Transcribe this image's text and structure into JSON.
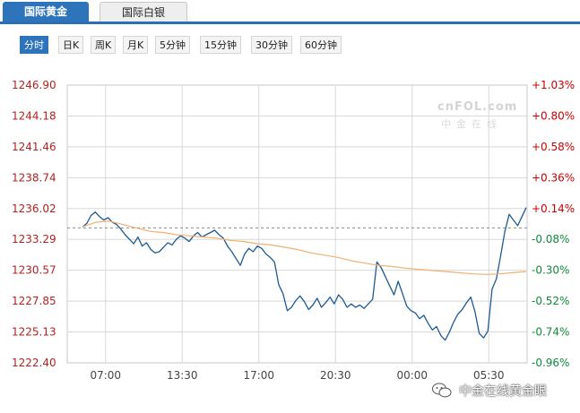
{
  "tabs": [
    {
      "label": "国际黄金",
      "active": true
    },
    {
      "label": "国际白银",
      "active": false
    }
  ],
  "periods": [
    {
      "label": "分时",
      "active": true
    },
    {
      "label": "日K",
      "active": false
    },
    {
      "label": "周K",
      "active": false
    },
    {
      "label": "月K",
      "active": false
    },
    {
      "label": "5分钟",
      "active": false
    },
    {
      "label": "15分钟",
      "active": false
    },
    {
      "label": "30分钟",
      "active": false
    },
    {
      "label": "60分钟",
      "active": false
    }
  ],
  "watermark": {
    "brand": "cnFOL.com",
    "sub": "中金在线"
  },
  "footer_watermark": "中金在线黄金眼",
  "colors": {
    "price_line": "#1f5a94",
    "avg_line": "#f0b070",
    "grid": "#d8d8d8",
    "ref_line": "#8a8a8a",
    "tab_active": "#2d74bb",
    "up": "#cc0000",
    "down": "#11883a"
  },
  "chart_data": {
    "type": "line",
    "y_ticks": [
      "1246.90",
      "1244.18",
      "1241.46",
      "1238.74",
      "1236.02",
      "1233.29",
      "1230.57",
      "1227.85",
      "1225.13",
      "1222.40"
    ],
    "pct_ticks": [
      "+1.03%",
      "+0.80%",
      "+0.58%",
      "+0.36%",
      "+0.14%",
      "-0.08%",
      "-0.30%",
      "-0.52%",
      "-0.74%",
      "-0.96%"
    ],
    "x_ticks": [
      "07:00",
      "13:30",
      "17:00",
      "20:30",
      "00:00",
      "05:30"
    ],
    "ylim": [
      1222.4,
      1246.9
    ],
    "prev_close": 1234.3,
    "grid": true,
    "series": [
      {
        "kind": "price",
        "values": [
          1234.4,
          1234.7,
          1235.4,
          1235.7,
          1235.3,
          1235.0,
          1235.2,
          1234.8,
          1234.6,
          1234.2,
          1233.7,
          1233.3,
          1232.9,
          1233.5,
          1232.7,
          1233.0,
          1232.4,
          1232.1,
          1232.2,
          1232.6,
          1233.0,
          1232.8,
          1233.3,
          1233.6,
          1233.4,
          1233.1,
          1233.6,
          1233.9,
          1233.5,
          1233.7,
          1233.9,
          1234.1,
          1233.7,
          1233.4,
          1232.7,
          1232.2,
          1231.6,
          1231.0,
          1232.0,
          1232.5,
          1232.2,
          1232.7,
          1232.5,
          1232.0,
          1231.7,
          1231.3,
          1229.3,
          1228.5,
          1227.0,
          1227.3,
          1227.9,
          1228.3,
          1227.8,
          1227.1,
          1227.5,
          1228.1,
          1227.3,
          1227.7,
          1228.2,
          1227.6,
          1228.4,
          1228.0,
          1227.3,
          1227.6,
          1227.3,
          1227.5,
          1227.2,
          1227.6,
          1228.0,
          1231.3,
          1230.8,
          1230.0,
          1229.2,
          1228.4,
          1229.6,
          1228.5,
          1227.4,
          1227.0,
          1226.8,
          1226.3,
          1226.6,
          1225.9,
          1225.3,
          1225.6,
          1224.8,
          1224.4,
          1225.1,
          1226.0,
          1226.7,
          1227.1,
          1227.7,
          1228.2,
          1226.9,
          1225.0,
          1224.6,
          1225.2,
          1228.9,
          1229.8,
          1231.8,
          1234.0,
          1235.5,
          1235.0,
          1234.5,
          1235.3,
          1236.1
        ]
      },
      {
        "kind": "average",
        "values": [
          1234.4,
          1234.8,
          1234.9,
          1234.6,
          1234.3,
          1234.0,
          1233.9,
          1233.7,
          1233.6,
          1233.5,
          1233.4,
          1233.2,
          1233.1,
          1232.9,
          1232.8,
          1232.6,
          1232.4,
          1232.1,
          1231.9,
          1231.7,
          1231.4,
          1231.2,
          1231.0,
          1230.9,
          1230.75,
          1230.65,
          1230.55,
          1230.45,
          1230.35,
          1230.25,
          1230.2,
          1230.25,
          1230.35,
          1230.45
        ]
      }
    ]
  }
}
